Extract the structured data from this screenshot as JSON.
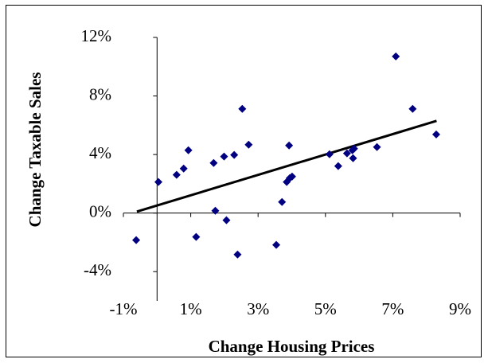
{
  "chart_data": {
    "type": "scatter",
    "x_label": "Change Housing Prices",
    "y_label": "Change Taxable Sales",
    "x": [
      -0.62,
      0.04,
      0.58,
      0.79,
      0.93,
      1.16,
      1.68,
      1.73,
      1.99,
      2.06,
      2.29,
      2.39,
      2.53,
      2.72,
      3.54,
      3.71,
      3.85,
      3.92,
      3.94,
      4.01,
      5.12,
      5.38,
      5.64,
      5.8,
      5.82,
      5.85,
      6.53,
      7.09,
      7.59,
      8.29
    ],
    "values": [
      -1.85,
      2.12,
      2.61,
      3.04,
      4.29,
      -1.63,
      3.42,
      0.16,
      3.86,
      -0.49,
      3.97,
      -2.83,
      7.12,
      4.67,
      -2.17,
      0.76,
      2.12,
      4.62,
      2.39,
      2.5,
      4.02,
      3.21,
      4.08,
      4.29,
      3.75,
      4.4,
      4.51,
      10.7,
      7.12,
      5.37
    ],
    "color": "#000080",
    "trendline": {
      "x": [
        -0.6,
        8.3
      ],
      "y": [
        0.1,
        6.3
      ],
      "color": "#000000"
    },
    "xlim": [
      -1,
      9
    ],
    "xticks": [
      {
        "value": -1,
        "label": "-1%"
      },
      {
        "value": 1,
        "label": "1%"
      },
      {
        "value": 3,
        "label": "3%"
      },
      {
        "value": 5,
        "label": "5%"
      },
      {
        "value": 7,
        "label": "7%"
      },
      {
        "value": 9,
        "label": "9%"
      }
    ],
    "ylim": [
      -6,
      12
    ],
    "yticks": [
      {
        "value": -4,
        "label": "-4%"
      },
      {
        "value": 0,
        "label": "0%"
      },
      {
        "value": 4,
        "label": "4%"
      },
      {
        "value": 8,
        "label": "8%"
      },
      {
        "value": 12,
        "label": "12%"
      }
    ]
  }
}
